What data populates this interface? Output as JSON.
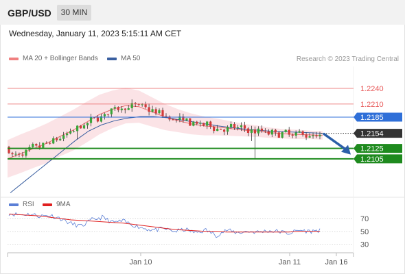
{
  "header": {
    "symbol": "GBP/USD",
    "timeframe": "30 MIN",
    "datetime": "Wednesday, January 11, 2023 5:15:11 AM CET"
  },
  "legend_main": [
    {
      "label": "MA 20 + Bollinger Bands",
      "color": "#f08080"
    },
    {
      "label": "MA 50",
      "color": "#3a5fa0"
    }
  ],
  "legend_rsi": [
    {
      "label": "RSI",
      "color": "#5b7fd6"
    },
    {
      "label": "9MA",
      "color": "#e02020"
    }
  ],
  "credit": "Research © 2023 Trading Central",
  "colors": {
    "resistance": "#e85c5c",
    "pivot": "#2f6fd8",
    "support": "#1e8a1e",
    "current": "#333333",
    "arrow": "#2c5fa8",
    "bull": "#3aa63a",
    "bear": "#d23a3a",
    "ma20_band": "#fadadd"
  },
  "chart_data": [
    {
      "type": "candlestick",
      "title": "GBP/USD 30 MIN",
      "ylim": [
        1.2038,
        1.2282
      ],
      "price_levels": [
        {
          "label": "1.2240",
          "value": 1.224,
          "kind": "resistance"
        },
        {
          "label": "1.2210",
          "value": 1.221,
          "kind": "resistance"
        },
        {
          "label": "1.2185",
          "value": 1.2185,
          "kind": "pivot"
        },
        {
          "label": "1.2154",
          "value": 1.2154,
          "kind": "current"
        },
        {
          "label": "1.2125",
          "value": 1.2125,
          "kind": "support"
        },
        {
          "label": "1.2105",
          "value": 1.2105,
          "kind": "support"
        }
      ],
      "x_tick_labels": [
        "Jan 10",
        "Jan 11",
        "Jan 16"
      ],
      "series": [
        {
          "name": "MA 20 + Bollinger Bands",
          "values": [
            1.2105,
            1.2115,
            1.2125,
            1.2135,
            1.2148,
            1.216,
            1.2175,
            1.219,
            1.22,
            1.2207,
            1.2205,
            1.2195,
            1.2185,
            1.2178,
            1.2172,
            1.2168,
            1.2166,
            1.2163,
            1.216,
            1.2158,
            1.2155,
            1.2153,
            1.2152,
            1.2151,
            1.215
          ]
        },
        {
          "name": "MA 50",
          "values": [
            1.204,
            1.206,
            1.208,
            1.21,
            1.212,
            1.214,
            1.2158,
            1.217,
            1.2178,
            1.2183,
            1.2186,
            1.2186,
            1.2184,
            1.218,
            1.2176,
            1.2172,
            1.2168,
            1.2165,
            1.2162,
            1.216,
            1.2158,
            1.2157,
            1.2156,
            1.2155,
            1.2154
          ]
        }
      ],
      "forecast": {
        "from": 1.2154,
        "to": 1.2125
      }
    },
    {
      "type": "line",
      "title": "RSI",
      "ylim": [
        20,
        85
      ],
      "y_ticks": [
        70,
        50,
        30
      ],
      "series": [
        {
          "name": "RSI",
          "values": [
            78,
            76,
            77,
            74,
            75,
            70,
            62,
            58,
            68,
            72,
            64,
            66,
            60,
            55,
            52,
            54,
            50,
            53,
            48,
            52,
            44,
            52,
            48,
            50,
            49,
            51,
            50,
            47,
            52,
            50,
            52
          ]
        },
        {
          "name": "9MA",
          "values": [
            77,
            76,
            75,
            74,
            72,
            70,
            68,
            67,
            66,
            65,
            64,
            63,
            61,
            59,
            57,
            55,
            53,
            52,
            51,
            50,
            50,
            49,
            49,
            49,
            49,
            49,
            49,
            49,
            50,
            50,
            50
          ]
        }
      ]
    }
  ]
}
